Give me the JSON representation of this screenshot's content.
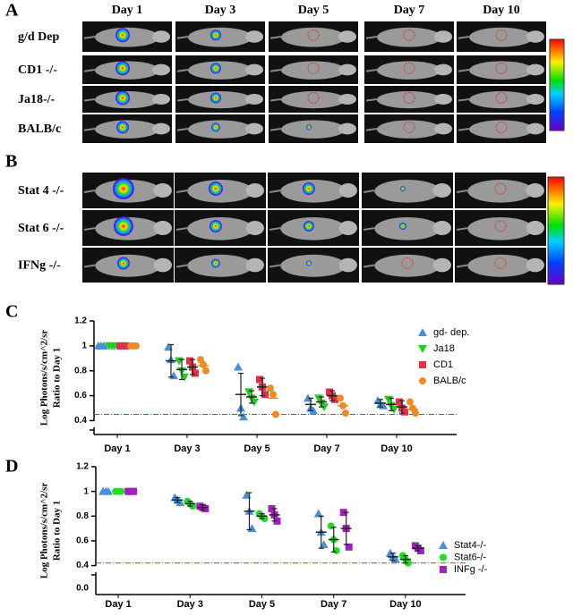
{
  "panel_a": {
    "label": "A",
    "columns": [
      "Day 1",
      "Day 3",
      "Day 5",
      "Day 7",
      "Day 10"
    ],
    "rows": [
      "g/d Dep",
      "CD1 -/-",
      "Ja18-/-",
      "BALB/c"
    ]
  },
  "panel_b": {
    "label": "B",
    "rows": [
      "Stat 4 -/-",
      "Stat 6 -/-",
      "IFNg -/-"
    ]
  },
  "chart_data": [
    {
      "type": "dot",
      "panel": "C",
      "ylabel": [
        "Log Photons/s/cm^2/sr",
        "Ratio to Day 1"
      ],
      "categories": [
        "Day 1",
        "Day 3",
        "Day 5",
        "Day 7",
        "Day 10"
      ],
      "ylim": [
        0.31,
        1.2
      ],
      "yticks": [
        0.4,
        0.6,
        0.8,
        1.0,
        1.2
      ],
      "hline": 0.45,
      "hline_color": "#e03030",
      "legend": "top-right",
      "series": [
        {
          "name": "gd- dep.",
          "color": "#4a90d9",
          "marker": "triangle-up",
          "values": [
            1.0,
            0.88,
            0.61,
            0.53,
            0.54
          ],
          "errors": [
            0,
            0.13,
            0.17,
            0.05,
            0.03
          ],
          "points": [
            [
              1.0,
              1.0,
              1.0
            ],
            [
              0.99,
              0.89,
              0.76
            ],
            [
              0.83,
              0.5,
              0.43
            ],
            [
              0.58,
              0.5,
              0.48
            ],
            [
              0.56,
              0.53,
              0.52
            ]
          ]
        },
        {
          "name": "Ja18",
          "color": "#22cc22",
          "marker": "triangle-down",
          "values": [
            1.0,
            0.81,
            0.59,
            0.55,
            0.53
          ],
          "errors": [
            0,
            0.08,
            0.05,
            0.04,
            0.05
          ],
          "points": [
            [
              1.0,
              1.0,
              1.0
            ],
            [
              0.88,
              0.8,
              0.75
            ],
            [
              0.63,
              0.58,
              0.55
            ],
            [
              0.58,
              0.54,
              0.51
            ],
            [
              0.57,
              0.52,
              0.49
            ]
          ]
        },
        {
          "name": "CD1",
          "color": "#e0304a",
          "marker": "square",
          "values": [
            1.0,
            0.83,
            0.67,
            0.6,
            0.51
          ],
          "errors": [
            0,
            0.06,
            0.07,
            0.04,
            0.05
          ],
          "points": [
            [
              1.0,
              1.0,
              1.0
            ],
            [
              0.88,
              0.83,
              0.78
            ],
            [
              0.73,
              0.67,
              0.61
            ],
            [
              0.63,
              0.6,
              0.57
            ],
            [
              0.55,
              0.5,
              0.47
            ]
          ]
        },
        {
          "name": "BALB/c",
          "color": "#f08a24",
          "marker": "circle",
          "values": [
            1.0,
            0.84,
            0.58,
            0.52,
            0.49
          ],
          "errors": [
            0,
            0,
            0,
            0,
            0
          ],
          "points": [
            [
              1.0,
              1.0,
              1.0
            ],
            [
              0.89,
              0.85,
              0.8
            ],
            [
              0.66,
              0.61,
              0.45
            ],
            [
              0.58,
              0.52,
              0.46
            ],
            [
              0.55,
              0.5,
              0.46
            ]
          ]
        }
      ]
    },
    {
      "type": "dot",
      "panel": "D",
      "ylabel": [
        "Log Photons/s/cm^2/sr",
        "Ratio to Day 1"
      ],
      "categories": [
        "Day 1",
        "Day 3",
        "Day 5",
        "Day 7",
        "Day 10"
      ],
      "ylim": [
        0.31,
        1.2
      ],
      "yticks": [
        0.4,
        0.6,
        0.8,
        1.0,
        1.2
      ],
      "axis_break_label": "0.0",
      "hline": 0.42,
      "hline_color": "#e03030",
      "legend": "bottom-right",
      "series": [
        {
          "name": "Stat4-/-",
          "color": "#4a90d9",
          "marker": "triangle-up",
          "values": [
            1.0,
            0.93,
            0.84,
            0.67,
            0.47
          ],
          "errors": [
            0,
            0.02,
            0.15,
            0.13,
            0.03
          ],
          "points": [
            [
              1.0,
              1.0,
              1.0
            ],
            [
              0.95,
              0.93,
              0.91
            ],
            [
              0.97,
              0.84,
              0.7
            ],
            [
              0.82,
              0.67,
              0.57
            ],
            [
              0.5,
              0.47,
              0.45
            ]
          ]
        },
        {
          "name": "Stat6-/-",
          "color": "#22dd22",
          "marker": "circle",
          "values": [
            1.0,
            0.9,
            0.8,
            0.61,
            0.45
          ],
          "errors": [
            0,
            0.02,
            0.02,
            0.1,
            0.03
          ],
          "points": [
            [
              1.0,
              1.0,
              1.0
            ],
            [
              0.92,
              0.9,
              0.88
            ],
            [
              0.82,
              0.8,
              0.78
            ],
            [
              0.72,
              0.61,
              0.52
            ],
            [
              0.48,
              0.45,
              0.42
            ]
          ]
        },
        {
          "name": "INFg -/-",
          "color": "#a020c0",
          "marker": "square",
          "values": [
            1.0,
            0.87,
            0.81,
            0.7,
            0.54
          ],
          "errors": [
            0,
            0.02,
            0.05,
            0.13,
            0.02
          ],
          "points": [
            [
              1.0,
              1.0,
              1.0
            ],
            [
              0.88,
              0.87,
              0.86
            ],
            [
              0.86,
              0.81,
              0.76
            ],
            [
              0.83,
              0.7,
              0.55
            ],
            [
              0.56,
              0.54,
              0.52
            ]
          ]
        }
      ]
    }
  ]
}
